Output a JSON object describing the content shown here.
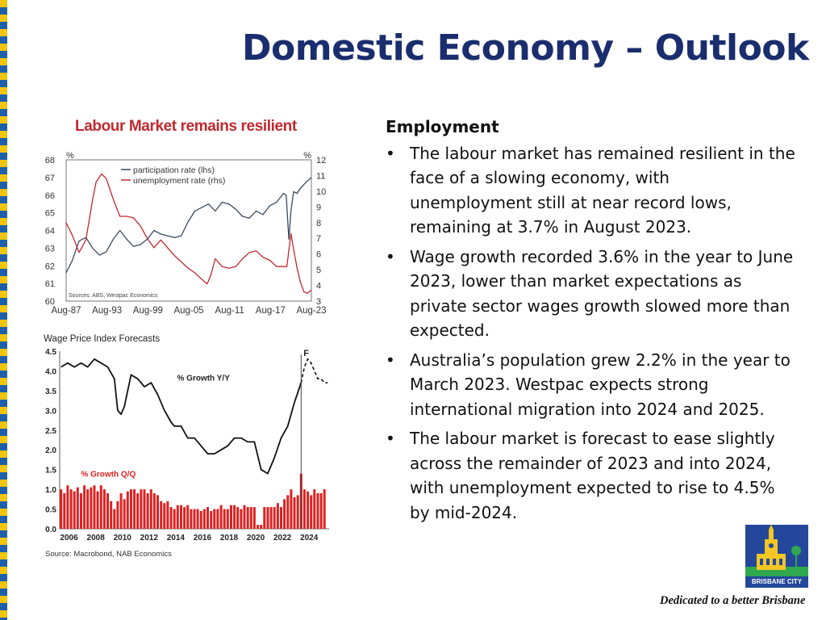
{
  "slide": {
    "title": "Domestic Economy – Outlook",
    "chart_caption": "Labour Market remains resilient",
    "tagline": "Dedicated to a better Brisbane",
    "logo_text": "BRISBANE CITY",
    "colors": {
      "title": "#1a2d6e",
      "caption": "#c0282e",
      "stripe_blue": "#1f5fa8",
      "stripe_yellow": "#f1c40f",
      "logo": "#24479b"
    }
  },
  "text_panel": {
    "heading": "Employment",
    "bullets": [
      "The labour market has remained resilient in the face of a slowing economy, with unemployment still at near record lows, remaining at 3.7% in August 2023.",
      "Wage growth recorded 3.6% in the year to June 2023, lower than market expectations as private sector wages growth slowed more than expected.",
      "Australia’s population grew 2.2% in the year to March 2023. Westpac expects strong international migration into 2024 and 2025.",
      "The labour market is forecast to ease slightly across the remainder of 2023 and into 2024, with unemployment expected to rise to 4.5% by mid-2024."
    ]
  },
  "chart_data": [
    {
      "type": "line",
      "title": "",
      "left_unit": "%",
      "right_unit": "%",
      "x_ticks": [
        "Aug-87",
        "Aug-93",
        "Aug-99",
        "Aug-05",
        "Aug-11",
        "Aug-17",
        "Aug-23"
      ],
      "x_range": [
        1987.6,
        2023.6
      ],
      "y_left_ticks": [
        60,
        61,
        62,
        63,
        64,
        65,
        66,
        67,
        68
      ],
      "y_left_range": [
        60,
        68
      ],
      "y_right_ticks": [
        3,
        4,
        5,
        6,
        7,
        8,
        9,
        10,
        11,
        12
      ],
      "y_right_range": [
        3,
        12
      ],
      "source": "Sources: ABS, Westpac Economics",
      "legend_position": "top-center",
      "series": [
        {
          "name": "participation rate (lhs)",
          "axis": "left",
          "color": "#3a4a5e",
          "x": [
            1987.6,
            1988.5,
            1989.5,
            1990.5,
            1991.5,
            1992.5,
            1993.5,
            1994.5,
            1995.5,
            1996.5,
            1997.5,
            1998.5,
            1999.5,
            2000.5,
            2001.5,
            2002.5,
            2003.5,
            2004.5,
            2005.5,
            2006.5,
            2007.5,
            2008.5,
            2009.5,
            2010.5,
            2011.5,
            2012.5,
            2013.5,
            2014.5,
            2015.5,
            2016.5,
            2017.5,
            2018.5,
            2019.5,
            2019.9,
            2020.3,
            2020.6,
            2021.0,
            2021.5,
            2022.0,
            2022.5,
            2023.0,
            2023.6
          ],
          "y": [
            61.6,
            62.3,
            63.4,
            63.6,
            63.0,
            62.6,
            62.8,
            63.5,
            64.0,
            63.5,
            63.1,
            63.2,
            63.5,
            64.0,
            63.8,
            63.7,
            63.6,
            63.7,
            64.5,
            65.1,
            65.3,
            65.5,
            65.1,
            65.6,
            65.5,
            65.2,
            64.8,
            64.7,
            65.1,
            64.9,
            65.4,
            65.6,
            66.1,
            66.0,
            63.5,
            65.1,
            66.2,
            66.1,
            66.4,
            66.6,
            66.8,
            67.0
          ]
        },
        {
          "name": "unemployment rate (rhs)",
          "axis": "right",
          "color": "#c0282e",
          "x": [
            1987.6,
            1988.5,
            1989.5,
            1990.5,
            1991.5,
            1992.0,
            1992.8,
            1993.5,
            1994.5,
            1995.5,
            1996.5,
            1997.5,
            1998.5,
            1999.5,
            2000.5,
            2001.5,
            2002.5,
            2003.5,
            2004.5,
            2005.5,
            2006.5,
            2007.5,
            2008.3,
            2008.8,
            2009.5,
            2010.5,
            2011.5,
            2012.5,
            2013.5,
            2014.5,
            2015.5,
            2016.5,
            2017.5,
            2018.5,
            2019.5,
            2020.0,
            2020.6,
            2021.0,
            2021.5,
            2022.0,
            2022.5,
            2023.0,
            2023.6
          ],
          "y": [
            8.0,
            7.2,
            6.1,
            6.9,
            9.5,
            10.6,
            11.1,
            10.8,
            9.5,
            8.4,
            8.4,
            8.3,
            7.8,
            7.0,
            6.4,
            6.9,
            6.4,
            5.9,
            5.5,
            5.1,
            4.8,
            4.4,
            4.1,
            4.6,
            5.7,
            5.2,
            5.1,
            5.2,
            5.7,
            6.1,
            6.2,
            5.8,
            5.6,
            5.2,
            5.2,
            5.2,
            7.3,
            6.3,
            5.1,
            4.2,
            3.6,
            3.5,
            3.7
          ]
        }
      ]
    },
    {
      "type": "bar",
      "title": "Wage Price Index Forecasts",
      "x_ticks": [
        "2006",
        "2008",
        "2010",
        "2012",
        "2014",
        "2016",
        "2018",
        "2020",
        "2022",
        "2024"
      ],
      "x_range": [
        2005.4,
        2025.6
      ],
      "y_ticks": [
        "0.0",
        "0.5",
        "1.0",
        "1.5",
        "2.0",
        "2.5",
        "3.0",
        "3.5",
        "4.0",
        "4.5"
      ],
      "ylim": [
        0,
        4.5
      ],
      "forecast_marker": {
        "x": 2023.5,
        "label": "F"
      },
      "source": "Source: Macrobond, NAB Economics",
      "series": [
        {
          "name": "% Growth Q/Q",
          "type": "bar",
          "color": "#e02020",
          "x": [
            2005.5,
            2005.75,
            2006.0,
            2006.25,
            2006.5,
            2006.75,
            2007.0,
            2007.25,
            2007.5,
            2007.75,
            2008.0,
            2008.25,
            2008.5,
            2008.75,
            2009.0,
            2009.25,
            2009.5,
            2009.75,
            2010.0,
            2010.25,
            2010.5,
            2010.75,
            2011.0,
            2011.25,
            2011.5,
            2011.75,
            2012.0,
            2012.25,
            2012.5,
            2012.75,
            2013.0,
            2013.25,
            2013.5,
            2013.75,
            2014.0,
            2014.25,
            2014.5,
            2014.75,
            2015.0,
            2015.25,
            2015.5,
            2015.75,
            2016.0,
            2016.25,
            2016.5,
            2016.75,
            2017.0,
            2017.25,
            2017.5,
            2017.75,
            2018.0,
            2018.25,
            2018.5,
            2018.75,
            2019.0,
            2019.25,
            2019.5,
            2019.75,
            2020.0,
            2020.25,
            2020.5,
            2020.75,
            2021.0,
            2021.25,
            2021.5,
            2021.75,
            2022.0,
            2022.25,
            2022.5,
            2022.75,
            2023.0,
            2023.25,
            2023.5,
            2023.75,
            2024.0,
            2024.25,
            2024.5,
            2024.75,
            2025.0,
            2025.25
          ],
          "values": [
            1.0,
            0.9,
            1.1,
            1.0,
            0.95,
            1.05,
            0.9,
            1.1,
            1.0,
            1.05,
            1.1,
            0.95,
            1.1,
            1.0,
            0.9,
            0.7,
            0.5,
            0.7,
            0.9,
            0.75,
            0.95,
            1.0,
            1.0,
            0.9,
            1.0,
            1.0,
            0.9,
            1.0,
            0.9,
            0.85,
            0.7,
            0.65,
            0.7,
            0.55,
            0.5,
            0.6,
            0.6,
            0.55,
            0.6,
            0.5,
            0.5,
            0.5,
            0.45,
            0.5,
            0.55,
            0.45,
            0.5,
            0.5,
            0.6,
            0.5,
            0.5,
            0.6,
            0.6,
            0.55,
            0.5,
            0.6,
            0.55,
            0.55,
            0.55,
            0.1,
            0.1,
            0.55,
            0.55,
            0.55,
            0.55,
            0.65,
            0.55,
            0.75,
            0.85,
            1.0,
            0.8,
            0.85,
            1.4,
            1.0,
            0.95,
            0.85,
            1.0,
            0.9,
            0.9,
            1.0
          ]
        },
        {
          "name": "% Growth Y/Y",
          "type": "line",
          "color": "#111111",
          "x": [
            2005.5,
            2006.0,
            2006.5,
            2007.0,
            2007.5,
            2008.0,
            2008.5,
            2009.0,
            2009.5,
            2009.75,
            2010.0,
            2010.25,
            2010.75,
            2011.25,
            2011.75,
            2012.25,
            2012.75,
            2013.25,
            2013.75,
            2014.0,
            2014.5,
            2015.0,
            2015.5,
            2016.0,
            2016.5,
            2017.0,
            2017.5,
            2018.0,
            2018.5,
            2019.0,
            2019.5,
            2020.0,
            2020.5,
            2021.0,
            2021.5,
            2022.0,
            2022.5,
            2023.0,
            2023.5
          ],
          "values": [
            4.1,
            4.2,
            4.1,
            4.2,
            4.1,
            4.3,
            4.2,
            4.1,
            3.8,
            3.0,
            2.9,
            3.1,
            3.9,
            3.8,
            3.6,
            3.7,
            3.4,
            3.0,
            2.7,
            2.6,
            2.6,
            2.3,
            2.3,
            2.1,
            1.9,
            1.9,
            2.0,
            2.1,
            2.3,
            2.3,
            2.2,
            2.2,
            1.5,
            1.4,
            1.8,
            2.3,
            2.6,
            3.2,
            3.7
          ]
        },
        {
          "name": "% Growth Y/Y forecast",
          "type": "line",
          "dashed": true,
          "color": "#111111",
          "x": [
            2023.5,
            2023.75,
            2024.0,
            2024.25,
            2024.5,
            2024.75,
            2025.0,
            2025.25,
            2025.5
          ],
          "values": [
            3.7,
            4.1,
            4.3,
            4.2,
            4.0,
            3.8,
            3.8,
            3.7,
            3.7
          ]
        }
      ]
    }
  ]
}
